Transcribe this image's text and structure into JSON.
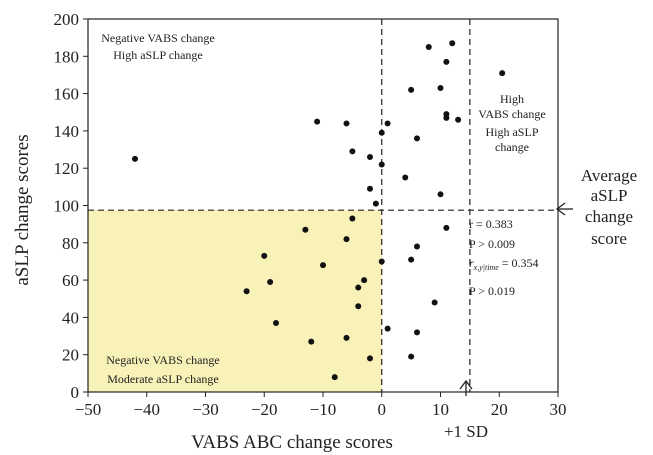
{
  "chart_data": {
    "type": "scatter",
    "xlabel": "VABS ABC change scores",
    "ylabel": "aSLP change scores",
    "xlim": [
      -50,
      30
    ],
    "ylim": [
      0,
      200
    ],
    "xticks": [
      "−50",
      "−40",
      "−30",
      "−20",
      "−10",
      "0",
      "10",
      "20",
      "30"
    ],
    "yticks": [
      "0",
      "20",
      "40",
      "60",
      "80",
      "100",
      "120",
      "140",
      "160",
      "180",
      "200"
    ],
    "grid": false,
    "reference_lines": {
      "x_zero": 0,
      "x_plus_1sd": 15,
      "y_average": 97.5
    },
    "highlight_region": {
      "x": [
        -50,
        0
      ],
      "y": [
        0,
        97.5
      ],
      "color": "#f8f1b8"
    },
    "points": [
      {
        "x": 8,
        "y": 185
      },
      {
        "x": 12,
        "y": 187
      },
      {
        "x": 11,
        "y": 177
      },
      {
        "x": 20.5,
        "y": 171
      },
      {
        "x": 10,
        "y": 163
      },
      {
        "x": 5,
        "y": 162
      },
      {
        "x": 11,
        "y": 149
      },
      {
        "x": 11,
        "y": 147
      },
      {
        "x": 13,
        "y": 146
      },
      {
        "x": -11,
        "y": 145
      },
      {
        "x": -6,
        "y": 144
      },
      {
        "x": 1,
        "y": 144
      },
      {
        "x": 0,
        "y": 139
      },
      {
        "x": 6,
        "y": 136
      },
      {
        "x": -5,
        "y": 129
      },
      {
        "x": -2,
        "y": 126
      },
      {
        "x": -42,
        "y": 125
      },
      {
        "x": 0,
        "y": 122
      },
      {
        "x": 4,
        "y": 115
      },
      {
        "x": -2,
        "y": 109
      },
      {
        "x": 10,
        "y": 106
      },
      {
        "x": -1,
        "y": 101
      },
      {
        "x": -5,
        "y": 93
      },
      {
        "x": 11,
        "y": 88
      },
      {
        "x": -13,
        "y": 87
      },
      {
        "x": -6,
        "y": 82
      },
      {
        "x": 6,
        "y": 78
      },
      {
        "x": -20,
        "y": 73
      },
      {
        "x": 5,
        "y": 71
      },
      {
        "x": 0,
        "y": 70
      },
      {
        "x": -10,
        "y": 68
      },
      {
        "x": -3,
        "y": 60
      },
      {
        "x": -19,
        "y": 59
      },
      {
        "x": -4,
        "y": 56
      },
      {
        "x": -23,
        "y": 54
      },
      {
        "x": 9,
        "y": 48
      },
      {
        "x": -4,
        "y": 46
      },
      {
        "x": -18,
        "y": 37
      },
      {
        "x": 1,
        "y": 34
      },
      {
        "x": 6,
        "y": 32
      },
      {
        "x": -6,
        "y": 29
      },
      {
        "x": -12,
        "y": 27
      },
      {
        "x": 5,
        "y": 19
      },
      {
        "x": -2,
        "y": 18
      },
      {
        "x": -8,
        "y": 8
      }
    ],
    "annotations": {
      "top_left": [
        "Negative VABS change",
        "High aSLP change"
      ],
      "top_right": [
        "High",
        "VABS change",
        "High aSLP",
        "change"
      ],
      "bottom_left": [
        "Negative VABS change",
        "Moderate aSLP change"
      ],
      "average_label": [
        "Average",
        "aSLP",
        "change",
        "score"
      ],
      "sd_label": "+1 SD",
      "stats": {
        "r": "r = 0.383",
        "p1": "P > 0.009",
        "r_partial_main": "r",
        "r_partial_sub": "x,y|time",
        "r_partial_value": " = 0.354",
        "p2": "P > 0.019"
      }
    }
  }
}
